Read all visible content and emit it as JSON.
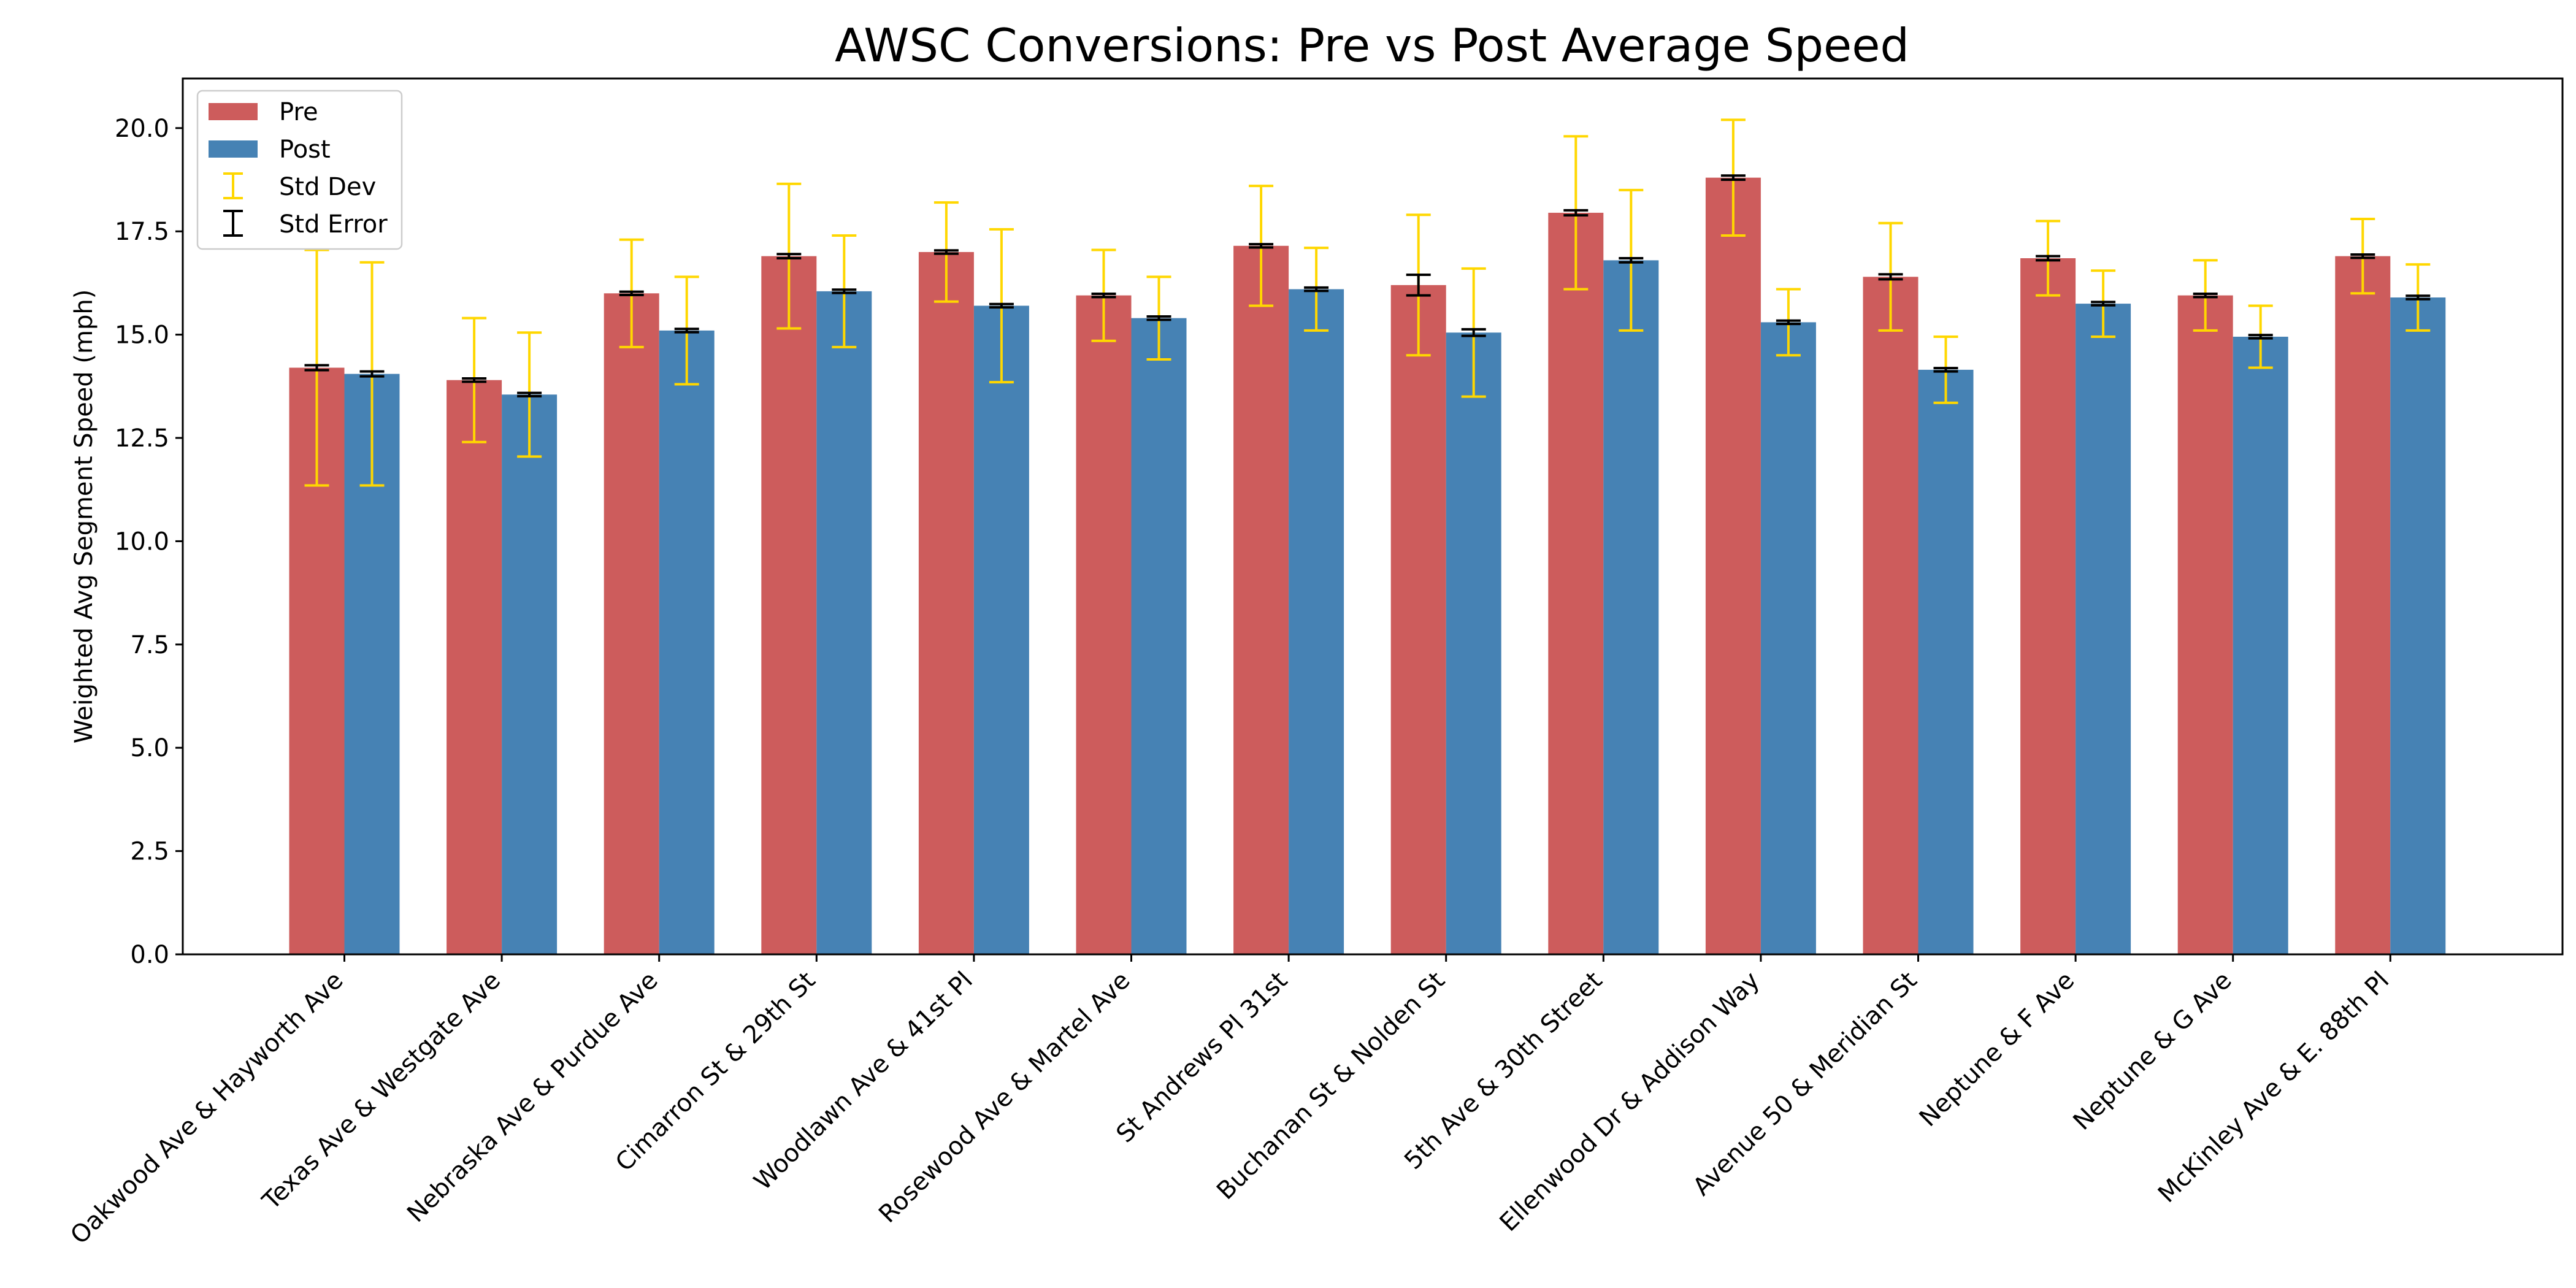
{
  "chart_data": {
    "type": "bar",
    "title": "AWSC Conversions: Pre vs Post Average Speed",
    "xlabel": "",
    "ylabel": "Weighted Avg Segment Speed (mph)",
    "ylim": [
      0,
      21.2
    ],
    "yticks": [
      "0.0",
      "2.5",
      "5.0",
      "7.5",
      "10.0",
      "12.5",
      "15.0",
      "17.5",
      "20.0"
    ],
    "categories": [
      "Oakwood Ave & Hayworth Ave",
      "Texas Ave & Westgate Ave",
      "Nebraska Ave & Purdue Ave",
      "Cimarron St & 29th St",
      "Woodlawn Ave & 41st Pl",
      "Rosewood Ave & Martel Ave",
      "St Andrews Pl 31st",
      "Buchanan St & Nolden St",
      "5th Ave & 30th Street",
      "Ellenwood Dr & Addison Way",
      "Avenue 50 & Meridian St",
      "Neptune & F Ave",
      "Neptune & G Ave",
      "McKinley Ave & E. 88th Pl"
    ],
    "series": [
      {
        "name": "Pre",
        "color": "#cd5c5c",
        "values": [
          14.2,
          13.9,
          16.0,
          16.9,
          17.0,
          15.95,
          17.15,
          16.2,
          17.95,
          18.8,
          16.4,
          16.85,
          15.95,
          16.9
        ],
        "std_dev": [
          2.85,
          1.5,
          1.3,
          1.75,
          1.2,
          1.1,
          1.45,
          1.7,
          1.85,
          1.4,
          1.3,
          0.9,
          0.85,
          0.9
        ],
        "std_err": [
          0.06,
          0.04,
          0.04,
          0.05,
          0.04,
          0.04,
          0.04,
          0.25,
          0.06,
          0.05,
          0.06,
          0.05,
          0.04,
          0.04
        ]
      },
      {
        "name": "Post",
        "color": "#4682b4",
        "values": [
          14.05,
          13.55,
          15.1,
          16.05,
          15.7,
          15.4,
          16.1,
          15.05,
          16.8,
          15.3,
          14.15,
          15.75,
          14.95,
          15.9
        ],
        "std_dev": [
          2.7,
          1.5,
          1.3,
          1.35,
          1.85,
          1.0,
          1.0,
          1.55,
          1.7,
          0.8,
          0.8,
          0.8,
          0.75,
          0.8
        ],
        "std_err": [
          0.06,
          0.04,
          0.04,
          0.04,
          0.04,
          0.04,
          0.04,
          0.08,
          0.05,
          0.04,
          0.04,
          0.04,
          0.04,
          0.04
        ]
      }
    ],
    "legend": {
      "placement": "top-left",
      "entries": [
        "Pre",
        "Post",
        "Std Dev",
        "Std Error"
      ],
      "std_dev_color": "#ffd700",
      "std_err_color": "#000000"
    }
  }
}
